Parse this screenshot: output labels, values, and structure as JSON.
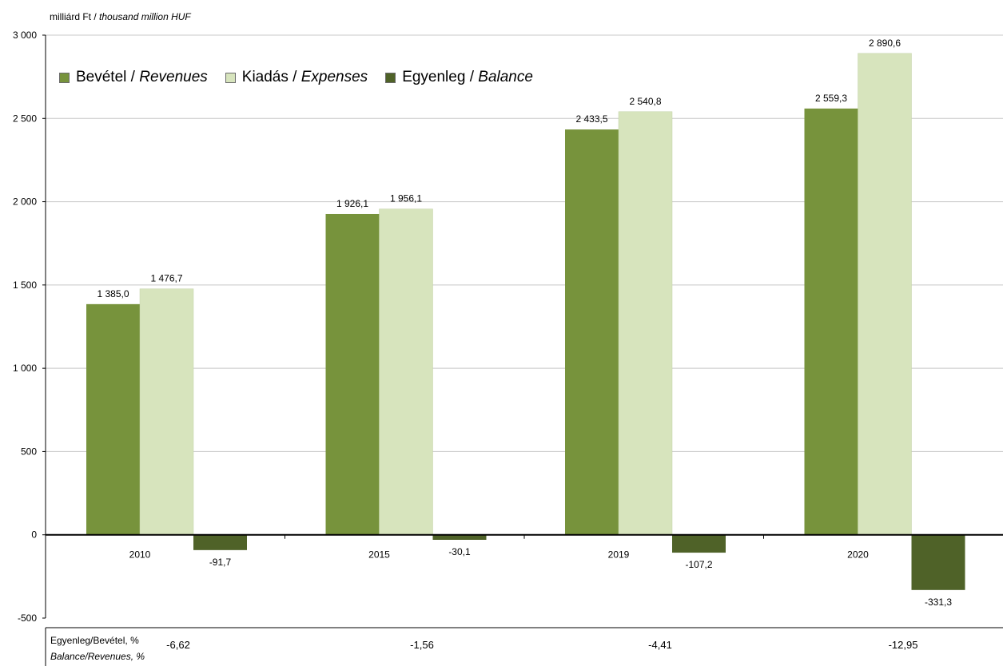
{
  "chart_data": {
    "type": "bar",
    "unit_label": {
      "hu": "milliárd Ft",
      "sep": " / ",
      "en": "thousand million HUF"
    },
    "categories": [
      "2010",
      "2015",
      "2019",
      "2020"
    ],
    "series": [
      {
        "name": "Bevétel / Revenues",
        "name_hu": "Bevétel",
        "name_en": "Revenues",
        "color": "#77933c",
        "values": [
          1385.0,
          1926.1,
          2433.5,
          2559.3
        ],
        "labels": [
          "1 385,0",
          "1 926,1",
          "2 433,5",
          "2 559,3"
        ]
      },
      {
        "name": "Kiadás / Expenses",
        "name_hu": "Kiadás",
        "name_en": "Expenses",
        "color": "#d7e4bd",
        "values": [
          1476.7,
          1956.1,
          2540.8,
          2890.6
        ],
        "labels": [
          "1 476,7",
          "1 956,1",
          "2 540,8",
          "2 890,6"
        ]
      },
      {
        "name": "Egyenleg / Balance",
        "name_hu": "Egyenleg",
        "name_en": "Balance",
        "color": "#4f6228",
        "values": [
          -91.7,
          -30.1,
          -107.2,
          -331.3
        ],
        "labels": [
          "-91,7",
          "-30,1",
          "-107,2",
          "-331,3"
        ]
      }
    ],
    "ylim": [
      -500,
      3000
    ],
    "yticks": [
      -500,
      0,
      500,
      1000,
      1500,
      2000,
      2500,
      3000
    ],
    "ytick_labels": [
      "-500",
      "0",
      "500",
      "1 000",
      "1 500",
      "2 000",
      "2 500",
      "3 000"
    ],
    "grid": true,
    "legend_position": "top-left",
    "ratio_row": {
      "caption_hu": "Egyenleg/Bevétel, %",
      "caption_en": "Balance/Revenues, %",
      "values": [
        "-6,62",
        "-1,56",
        "-4,41",
        "-12,95"
      ]
    }
  }
}
